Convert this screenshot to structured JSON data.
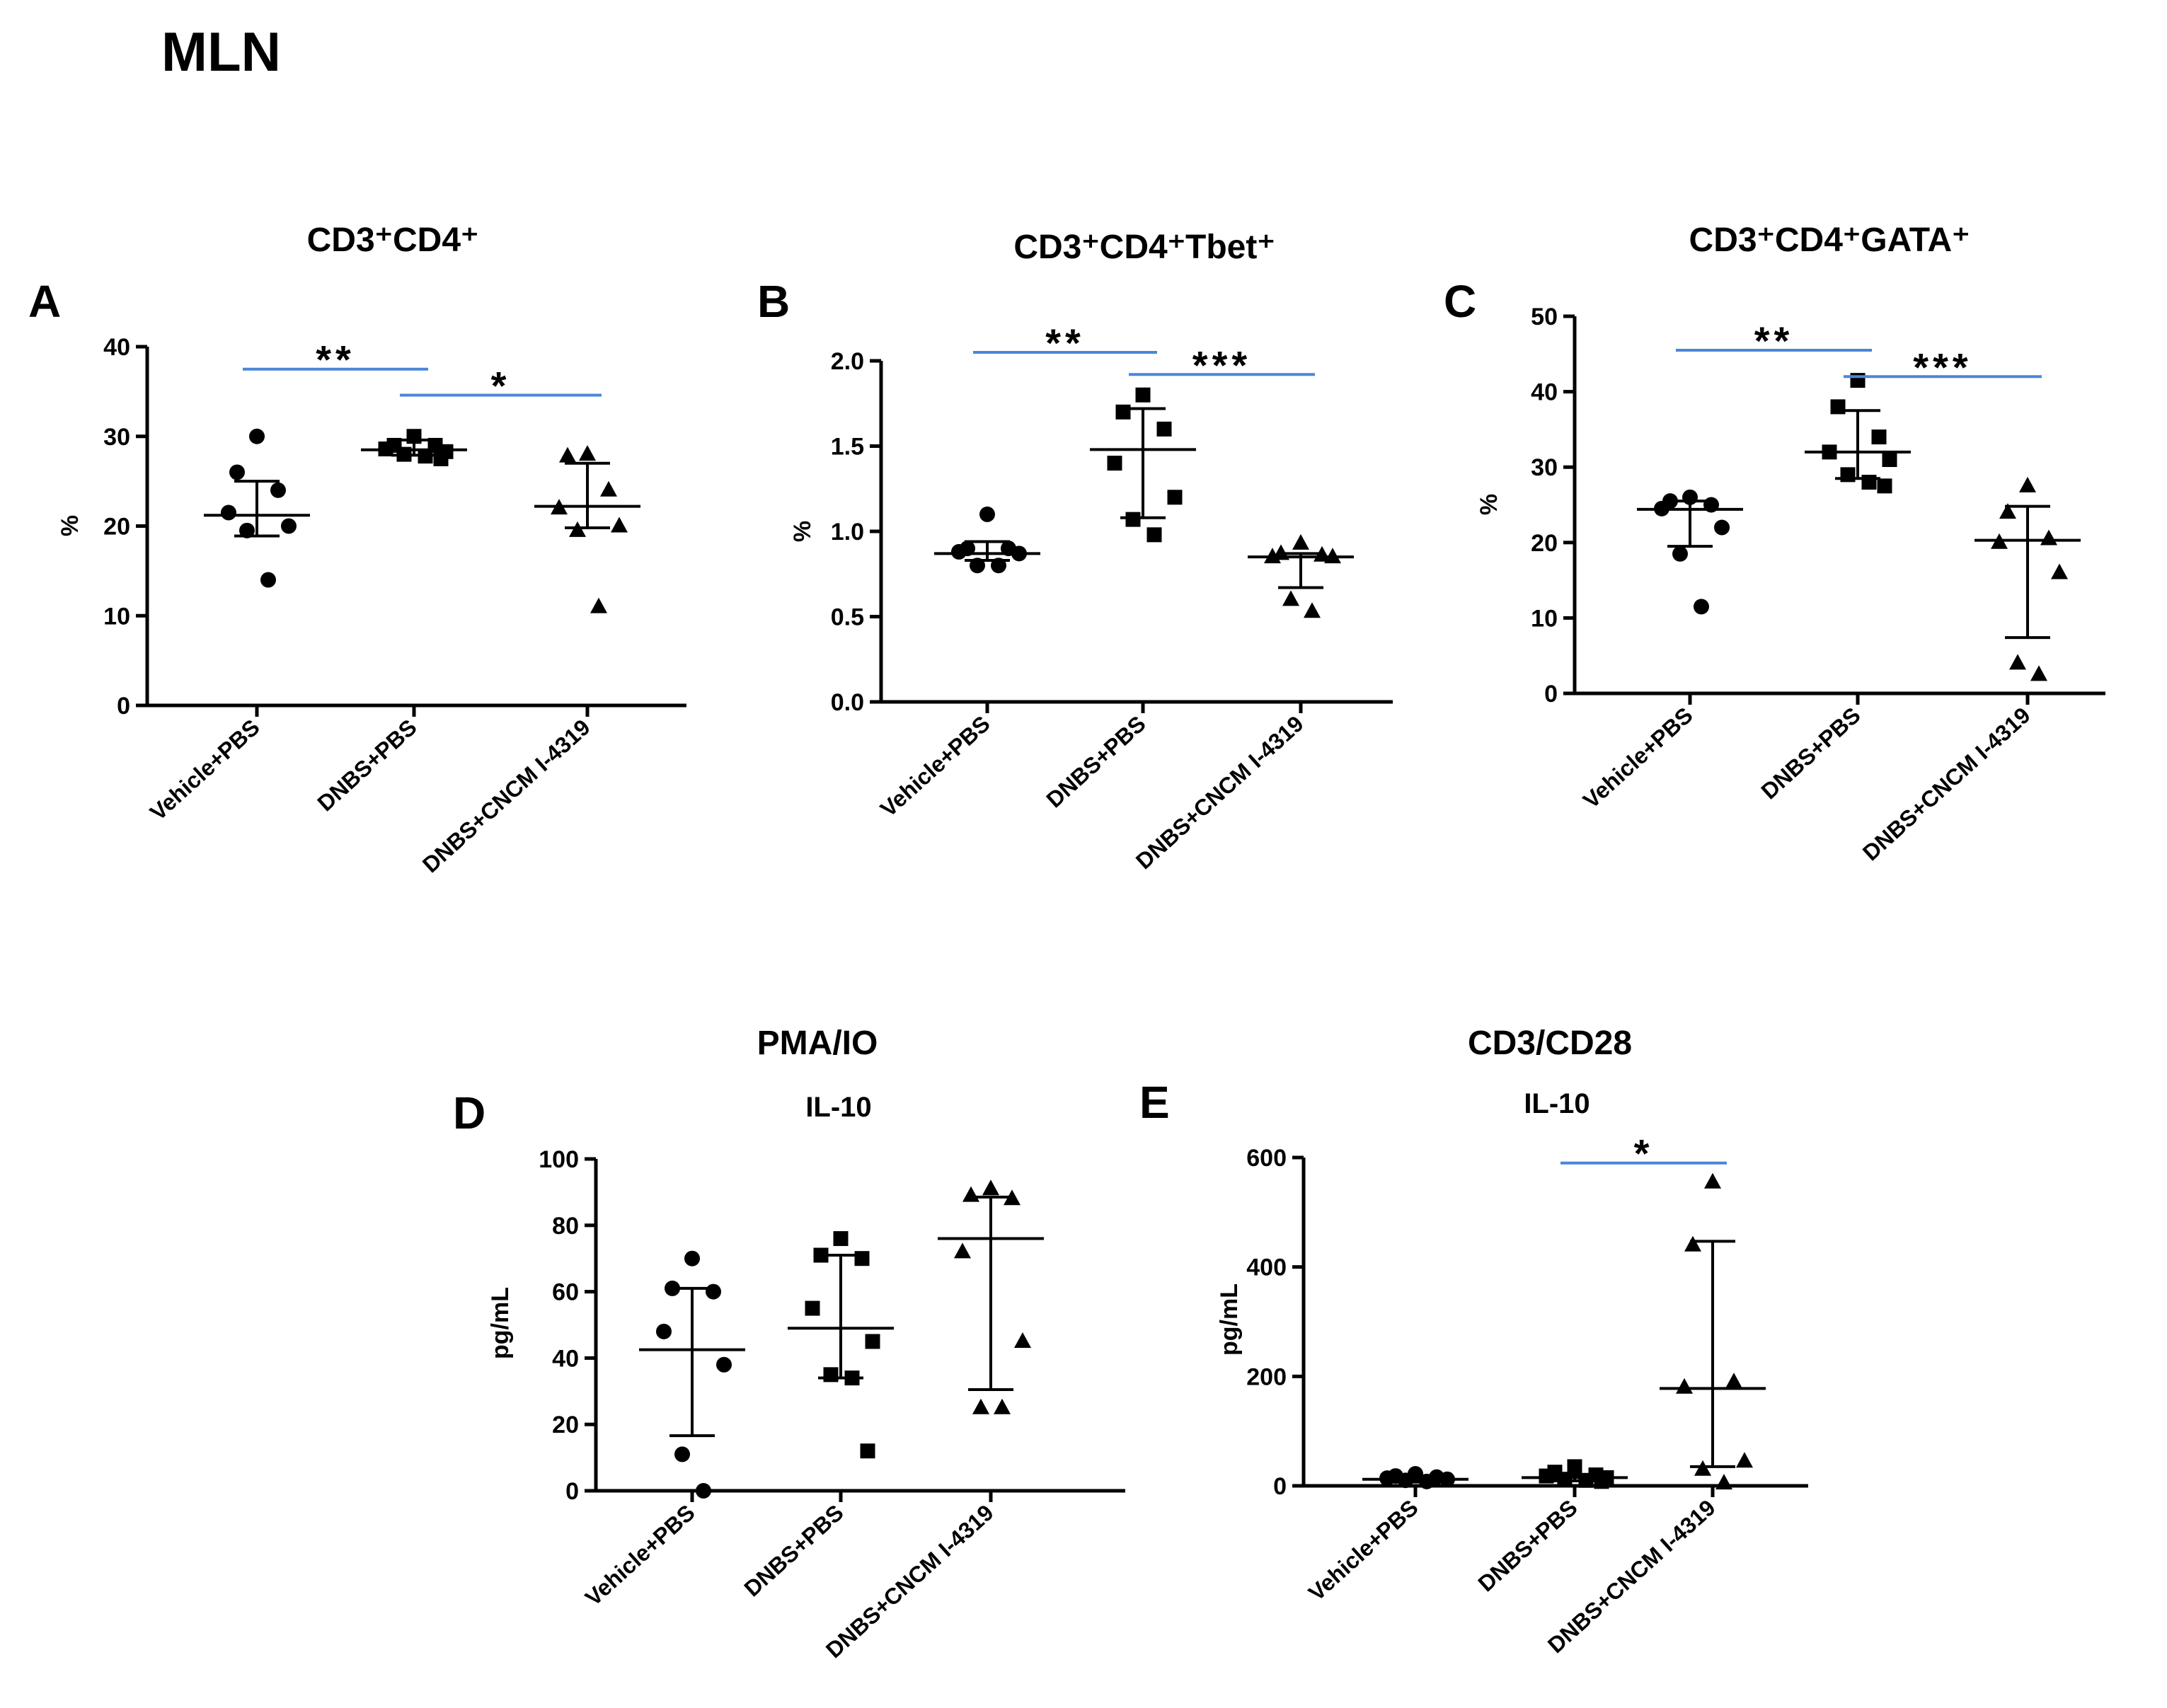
{
  "figure_title": "MLN",
  "colors": {
    "axis": "#000000",
    "marker": "#000000",
    "significance": "#4a86d8"
  },
  "chart_data": [
    {
      "type": "scatter",
      "panel_letter": "A",
      "title": "CD3⁺CD4⁺",
      "subtitle": "",
      "ylabel": "%",
      "ylim": [
        0,
        40
      ],
      "yticks": [
        0,
        10,
        20,
        30,
        40
      ],
      "tick_labels": [
        "0",
        "10",
        "20",
        "30",
        "40"
      ],
      "categories": [
        "Vehicle+PBS",
        "DNBS+PBS",
        "DNBS+CNCM I-4319"
      ],
      "markers": [
        "circle",
        "square",
        "triangle"
      ],
      "series": [
        {
          "name": "Vehicle+PBS",
          "values": [
            30,
            26,
            24,
            21.5,
            20,
            19.5,
            14
          ],
          "mean": 21.2,
          "err_low": 18.9,
          "err_high": 25.0
        },
        {
          "name": "DNBS+PBS",
          "values": [
            30,
            29,
            29,
            28.6,
            28.3,
            28,
            27.8,
            27.5
          ],
          "mean": 28.5,
          "err_low": 27.9,
          "err_high": 29.6
        },
        {
          "name": "DNBS+CNCM I-4319",
          "values": [
            28,
            27.8,
            24,
            22,
            20,
            19.5,
            11
          ],
          "mean": 22.2,
          "err_low": 19.8,
          "err_high": 27.0
        }
      ],
      "significance": [
        {
          "from": 0,
          "to": 1,
          "label": "**",
          "y": 37.5
        },
        {
          "from": 1,
          "to": 2,
          "label": "*",
          "y": 34.6
        }
      ]
    },
    {
      "type": "scatter",
      "panel_letter": "B",
      "title": "CD3⁺CD4⁺Tbet⁺",
      "subtitle": "",
      "ylabel": "%",
      "ylim": [
        0,
        2.0
      ],
      "yticks": [
        0,
        0.5,
        1.0,
        1.5,
        2.0
      ],
      "tick_labels": [
        "0.0",
        "0.5",
        "1.0",
        "1.5",
        "2.0"
      ],
      "categories": [
        "Vehicle+PBS",
        "DNBS+PBS",
        "DNBS+CNCM I-4319"
      ],
      "markers": [
        "circle",
        "square",
        "triangle"
      ],
      "series": [
        {
          "name": "Vehicle+PBS",
          "values": [
            1.1,
            0.9,
            0.9,
            0.88,
            0.87,
            0.8,
            0.8
          ],
          "mean": 0.87,
          "err_low": 0.83,
          "err_high": 0.94
        },
        {
          "name": "DNBS+PBS",
          "values": [
            1.8,
            1.7,
            1.6,
            1.4,
            1.2,
            1.07,
            0.98
          ],
          "mean": 1.48,
          "err_low": 1.08,
          "err_high": 1.72
        },
        {
          "name": "DNBS+CNCM I-4319",
          "values": [
            0.93,
            0.87,
            0.86,
            0.85,
            0.85,
            0.6,
            0.53
          ],
          "mean": 0.85,
          "err_low": 0.67,
          "err_high": 0.87
        }
      ],
      "significance": [
        {
          "from": 0,
          "to": 1,
          "label": "**",
          "y": 2.05
        },
        {
          "from": 1,
          "to": 2,
          "label": "***",
          "y": 1.92
        }
      ]
    },
    {
      "type": "scatter",
      "panel_letter": "C",
      "title": "CD3⁺CD4⁺GATA⁺",
      "subtitle": "",
      "ylabel": "%",
      "ylim": [
        0,
        50
      ],
      "yticks": [
        0,
        10,
        20,
        30,
        40,
        50
      ],
      "tick_labels": [
        "0",
        "10",
        "20",
        "30",
        "40",
        "50"
      ],
      "categories": [
        "Vehicle+PBS",
        "DNBS+PBS",
        "DNBS+CNCM I-4319"
      ],
      "markers": [
        "circle",
        "square",
        "triangle"
      ],
      "series": [
        {
          "name": "Vehicle+PBS",
          "values": [
            26,
            25.5,
            25,
            24.5,
            22,
            18.5,
            11.5
          ],
          "mean": 24.4,
          "err_low": 19.5,
          "err_high": 25.5
        },
        {
          "name": "DNBS+PBS",
          "values": [
            41.5,
            38,
            34,
            32,
            31,
            29,
            28,
            27.5
          ],
          "mean": 32.0,
          "err_low": 28.5,
          "err_high": 37.5
        },
        {
          "name": "DNBS+CNCM I-4319",
          "values": [
            27.5,
            24,
            20.5,
            20,
            16,
            4,
            2.5
          ],
          "mean": 20.3,
          "err_low": 7.4,
          "err_high": 24.8
        }
      ],
      "significance": [
        {
          "from": 0,
          "to": 1,
          "label": "**",
          "y": 45.5
        },
        {
          "from": 1,
          "to": 2,
          "label": "***",
          "y": 42.0
        }
      ]
    },
    {
      "type": "scatter",
      "panel_letter": "D",
      "title": "PMA/IO",
      "subtitle": "IL-10",
      "ylabel": "pg/mL",
      "ylim": [
        0,
        100
      ],
      "yticks": [
        0,
        20,
        40,
        60,
        80,
        100
      ],
      "tick_labels": [
        "0",
        "20",
        "40",
        "60",
        "80",
        "100"
      ],
      "categories": [
        "Vehicle+PBS",
        "DNBS+PBS",
        "DNBS+CNCM I-4319"
      ],
      "markers": [
        "circle",
        "square",
        "triangle"
      ],
      "series": [
        {
          "name": "Vehicle+PBS",
          "values": [
            70,
            61,
            60,
            48,
            38,
            11,
            0
          ],
          "mean": 42.5,
          "err_low": 16.6,
          "err_high": 61.0
        },
        {
          "name": "DNBS+PBS",
          "values": [
            76,
            71,
            70,
            55,
            45,
            35,
            34,
            12
          ],
          "mean": 49.0,
          "err_low": 34.0,
          "err_high": 71.0
        },
        {
          "name": "DNBS+CNCM I-4319",
          "values": [
            91,
            89,
            88,
            72,
            45,
            25,
            25
          ],
          "mean": 76.0,
          "err_low": 30.5,
          "err_high": 88.5
        }
      ],
      "significance": []
    },
    {
      "type": "scatter",
      "panel_letter": "E",
      "title": "CD3/CD28",
      "subtitle": "IL-10",
      "ylabel": "pg/mL",
      "ylim": [
        0,
        600
      ],
      "yticks": [
        0,
        200,
        400,
        600
      ],
      "tick_labels": [
        "0",
        "200",
        "400",
        "600"
      ],
      "categories": [
        "Vehicle+PBS",
        "DNBS+PBS",
        "DNBS+CNCM I-4319"
      ],
      "markers": [
        "circle",
        "square",
        "triangle"
      ],
      "series": [
        {
          "name": "Vehicle+PBS",
          "values": [
            22,
            18,
            16,
            14,
            12,
            10,
            8
          ],
          "mean": 12,
          "err_low": 7,
          "err_high": 16
        },
        {
          "name": "DNBS+PBS",
          "values": [
            35,
            25,
            20,
            18,
            15,
            12,
            10,
            8
          ],
          "mean": 15,
          "err_low": 9,
          "err_high": 20
        },
        {
          "name": "DNBS+CNCM I-4319",
          "values": [
            555,
            440,
            190,
            180,
            45,
            30,
            5
          ],
          "mean": 178,
          "err_low": 35,
          "err_high": 447
        }
      ],
      "significance": [
        {
          "from": 1,
          "to": 2,
          "label": "*",
          "y": 590
        }
      ]
    }
  ]
}
